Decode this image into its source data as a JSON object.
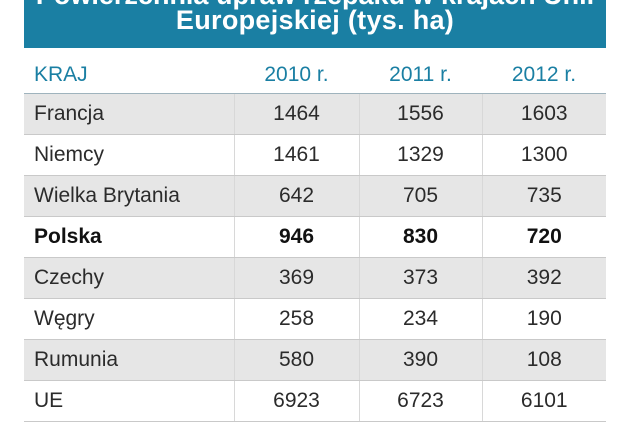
{
  "title": {
    "line1": "Powierzchnia upraw rzepaku w krajach Unii",
    "line2": "Europejskiej (tys. ha)"
  },
  "table": {
    "headers": [
      "KRAJ",
      "2010 r.",
      "2011 r.",
      "2012 r."
    ],
    "rows": [
      [
        "Francja",
        "1464",
        "1556",
        "1603"
      ],
      [
        "Niemcy",
        "1461",
        "1329",
        "1300"
      ],
      [
        "Wielka Brytania",
        "642",
        "705",
        "735"
      ],
      [
        "Polska",
        "946",
        "830",
        "720"
      ],
      [
        "Czechy",
        "369",
        "373",
        "392"
      ],
      [
        "Węgry",
        "258",
        "234",
        "190"
      ],
      [
        "Rumunia",
        "580",
        "390",
        "108"
      ],
      [
        "UE",
        "6923",
        "6723",
        "6101"
      ]
    ],
    "highlighted_row": "Polska"
  },
  "colors": {
    "accent": "#1a7fa3",
    "stripe": "#e6e6e6"
  }
}
